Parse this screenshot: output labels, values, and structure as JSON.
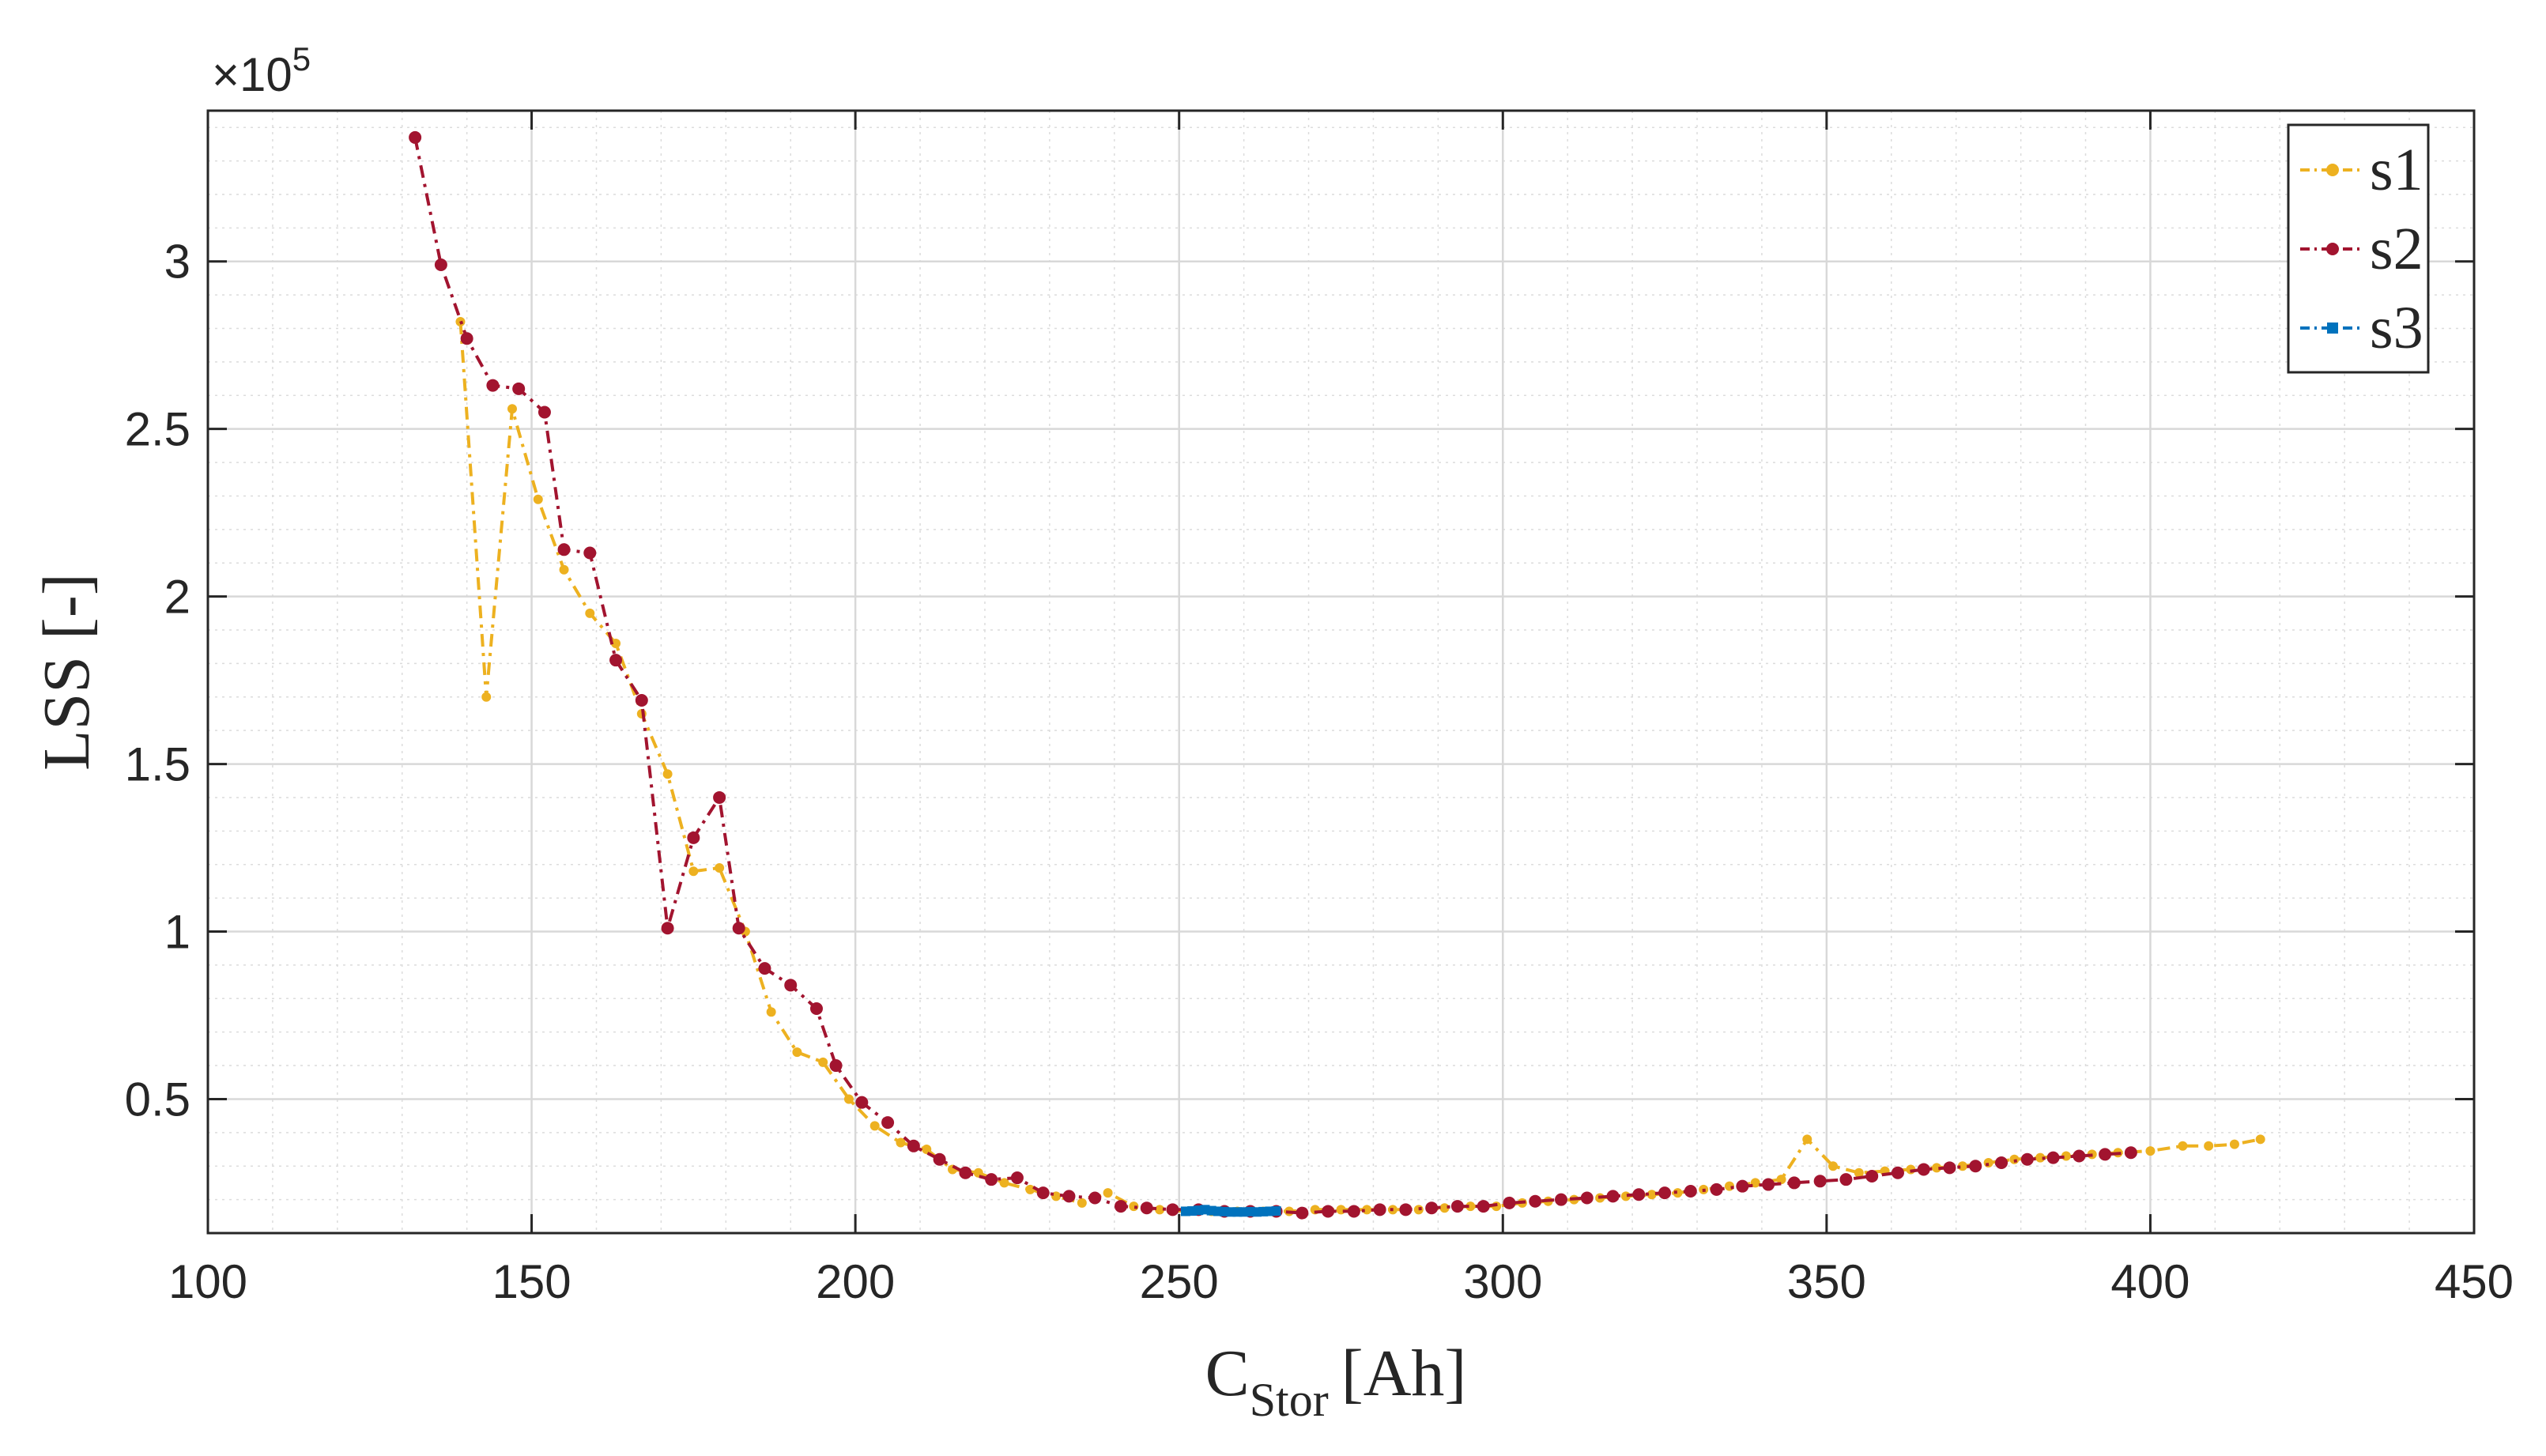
{
  "chart_data": {
    "type": "line",
    "xlabel": "C",
    "xlabel_sub": "Stor",
    "xlabel_unit": "[Ah]",
    "ylabel": "LSS [-]",
    "exponent_label": "×10",
    "exponent_power": "5",
    "xlim": [
      100,
      450
    ],
    "ylim": [
      10000,
      345000
    ],
    "x_ticks": [
      100,
      150,
      200,
      250,
      300,
      350,
      400,
      450
    ],
    "x_tick_labels": [
      "100",
      "150",
      "200",
      "250",
      "300",
      "350",
      "400",
      "450"
    ],
    "y_ticks": [
      50000,
      100000,
      150000,
      200000,
      250000,
      300000
    ],
    "y_tick_labels": [
      "0.5",
      "1",
      "1.5",
      "2",
      "2.5",
      "3"
    ],
    "grid": true,
    "minor_grid": true,
    "legend_position": "top-right",
    "series": [
      {
        "name": "s1",
        "color": "#EDB120",
        "marker": "dot",
        "x": [
          139,
          143,
          147,
          151,
          155,
          159,
          163,
          167,
          171,
          175,
          179,
          183,
          187,
          191,
          195,
          199,
          203,
          207,
          211,
          215,
          219,
          223,
          227,
          231,
          235,
          239,
          243,
          247,
          251,
          255,
          259,
          263,
          267,
          271,
          275,
          279,
          283,
          287,
          291,
          295,
          299,
          303,
          307,
          311,
          315,
          319,
          323,
          327,
          331,
          335,
          339,
          343,
          347,
          351,
          355,
          359,
          363,
          367,
          371,
          375,
          379,
          383,
          387,
          391,
          395,
          400,
          405,
          409,
          413,
          417
        ],
        "y": [
          282000,
          170000,
          256000,
          229000,
          208000,
          195000,
          186000,
          165000,
          147000,
          118000,
          119000,
          100000,
          76000,
          64000,
          61000,
          50000,
          42000,
          37000,
          35000,
          29000,
          28000,
          25000,
          23000,
          21000,
          19000,
          22000,
          18000,
          17000,
          16500,
          16500,
          16500,
          16500,
          16500,
          17000,
          17000,
          17000,
          17000,
          17000,
          17500,
          18000,
          18000,
          19000,
          19500,
          20000,
          20500,
          21000,
          21500,
          22000,
          23000,
          24000,
          25000,
          26000,
          38000,
          30000,
          28000,
          28500,
          29000,
          29500,
          30000,
          31000,
          32000,
          32500,
          33000,
          33500,
          34000,
          34500,
          36000,
          36000,
          36500,
          38000
        ]
      },
      {
        "name": "s2",
        "color": "#A2142F",
        "marker": "dot",
        "x": [
          132,
          136,
          140,
          144,
          148,
          152,
          155,
          159,
          163,
          167,
          171,
          175,
          179,
          182,
          186,
          190,
          194,
          197,
          201,
          205,
          209,
          213,
          217,
          221,
          225,
          229,
          233,
          237,
          241,
          245,
          249,
          253,
          257,
          261,
          265,
          269,
          273,
          277,
          281,
          285,
          289,
          293,
          297,
          301,
          305,
          309,
          313,
          317,
          321,
          325,
          329,
          333,
          337,
          341,
          345,
          349,
          353,
          357,
          361,
          365,
          369,
          373,
          377,
          381,
          385,
          389,
          393,
          397
        ],
        "y": [
          337000,
          299000,
          277000,
          263000,
          262000,
          255000,
          214000,
          213000,
          181000,
          169000,
          101000,
          128000,
          140000,
          101000,
          89000,
          84000,
          77000,
          60000,
          49000,
          43000,
          36000,
          32000,
          28000,
          26000,
          26500,
          22000,
          21000,
          20500,
          18000,
          17500,
          17000,
          17000,
          16500,
          16500,
          16500,
          16000,
          16500,
          16500,
          17000,
          17000,
          17500,
          18000,
          18000,
          19000,
          19500,
          20000,
          20500,
          21000,
          21500,
          22000,
          22500,
          23000,
          24000,
          24500,
          25000,
          25500,
          26000,
          27000,
          28000,
          29000,
          29500,
          30000,
          31000,
          32000,
          32500,
          33000,
          33500,
          34000
        ]
      },
      {
        "name": "s3",
        "color": "#0072BD",
        "marker": "square",
        "x": [
          251,
          252,
          253,
          254,
          255,
          256,
          257,
          258,
          259,
          260,
          261,
          262,
          263,
          264,
          265
        ],
        "y": [
          16500,
          16600,
          16800,
          17000,
          16700,
          16500,
          16400,
          16300,
          16300,
          16300,
          16400,
          16300,
          16400,
          16500,
          16600
        ]
      }
    ]
  }
}
